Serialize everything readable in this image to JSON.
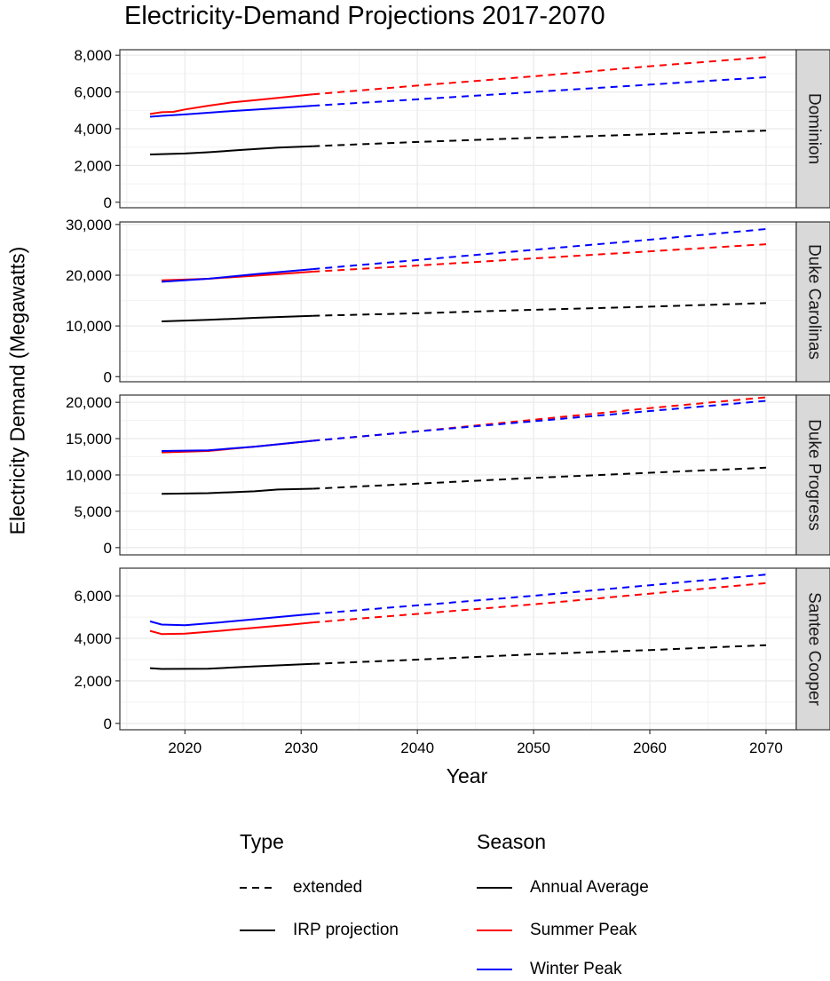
{
  "chart_data": {
    "type": "line",
    "title": "Electricity-Demand Projections 2017-2070",
    "xlabel": "Year",
    "ylabel": "Electricity Demand (Megawatts)",
    "xlim": [
      2014.4,
      2072.6
    ],
    "xticks": [
      2020,
      2030,
      2040,
      2050,
      2060,
      2070
    ],
    "grid": true,
    "colors": {
      "Annual Average": "#000000",
      "Summer Peak": "#ff0000",
      "Winter Peak": "#0000ff"
    },
    "legend": {
      "placement": "bottom",
      "type_title": "Type",
      "type_items": [
        {
          "label": "extended",
          "linestyle": "dashed"
        },
        {
          "label": "IRP projection",
          "linestyle": "solid"
        }
      ],
      "season_title": "Season",
      "season_items": [
        {
          "label": "Annual Average",
          "color": "#000000"
        },
        {
          "label": "Summer Peak",
          "color": "#ff0000"
        },
        {
          "label": "Winter Peak",
          "color": "#0000ff"
        }
      ]
    },
    "facets": [
      {
        "name": "Dominion",
        "ylim": [
          -300,
          8300
        ],
        "yticks": [
          0,
          2000,
          4000,
          6000,
          8000
        ],
        "ytick_labels": [
          "0",
          "2,000",
          "4,000",
          "6,000",
          "8,000"
        ],
        "series": [
          {
            "season": "Annual Average",
            "type": "IRP projection",
            "points": [
              [
                2017,
                2600
              ],
              [
                2020,
                2650
              ],
              [
                2022,
                2720
              ],
              [
                2025,
                2850
              ],
              [
                2028,
                2970
              ],
              [
                2031,
                3050
              ]
            ]
          },
          {
            "season": "Annual Average",
            "type": "extended",
            "points": [
              [
                2031,
                3050
              ],
              [
                2040,
                3280
              ],
              [
                2050,
                3500
              ],
              [
                2060,
                3700
              ],
              [
                2070,
                3900
              ]
            ]
          },
          {
            "season": "Summer Peak",
            "type": "IRP projection",
            "points": [
              [
                2017,
                4800
              ],
              [
                2018,
                4900
              ],
              [
                2019,
                4920
              ],
              [
                2020,
                5050
              ],
              [
                2022,
                5250
              ],
              [
                2024,
                5430
              ],
              [
                2026,
                5550
              ],
              [
                2028,
                5680
              ],
              [
                2031,
                5870
              ]
            ]
          },
          {
            "season": "Summer Peak",
            "type": "extended",
            "points": [
              [
                2031,
                5870
              ],
              [
                2040,
                6350
              ],
              [
                2050,
                6850
              ],
              [
                2060,
                7400
              ],
              [
                2070,
                7900
              ]
            ]
          },
          {
            "season": "Winter Peak",
            "type": "IRP projection",
            "points": [
              [
                2017,
                4650
              ],
              [
                2018,
                4700
              ],
              [
                2020,
                4780
              ],
              [
                2022,
                4870
              ],
              [
                2024,
                4960
              ],
              [
                2026,
                5040
              ],
              [
                2028,
                5120
              ],
              [
                2031,
                5250
              ]
            ]
          },
          {
            "season": "Winter Peak",
            "type": "extended",
            "points": [
              [
                2031,
                5250
              ],
              [
                2040,
                5600
              ],
              [
                2050,
                6000
              ],
              [
                2060,
                6400
              ],
              [
                2070,
                6800
              ]
            ]
          }
        ]
      },
      {
        "name": "Duke Carolinas",
        "ylim": [
          -1000,
          30500
        ],
        "yticks": [
          0,
          10000,
          20000,
          30000
        ],
        "ytick_labels": [
          "0",
          "10,000",
          "20,000",
          "30,000"
        ],
        "series": [
          {
            "season": "Annual Average",
            "type": "IRP projection",
            "points": [
              [
                2018,
                10900
              ],
              [
                2022,
                11200
              ],
              [
                2026,
                11600
              ],
              [
                2031,
                12000
              ]
            ]
          },
          {
            "season": "Annual Average",
            "type": "extended",
            "points": [
              [
                2031,
                12000
              ],
              [
                2040,
                12500
              ],
              [
                2050,
                13200
              ],
              [
                2060,
                13800
              ],
              [
                2070,
                14500
              ]
            ]
          },
          {
            "season": "Summer Peak",
            "type": "IRP projection",
            "points": [
              [
                2018,
                19000
              ],
              [
                2022,
                19300
              ],
              [
                2026,
                19900
              ],
              [
                2031,
                20700
              ]
            ]
          },
          {
            "season": "Summer Peak",
            "type": "extended",
            "points": [
              [
                2031,
                20700
              ],
              [
                2040,
                21900
              ],
              [
                2050,
                23300
              ],
              [
                2060,
                24700
              ],
              [
                2070,
                26100
              ]
            ]
          },
          {
            "season": "Winter Peak",
            "type": "IRP projection",
            "points": [
              [
                2018,
                18700
              ],
              [
                2022,
                19300
              ],
              [
                2026,
                20200
              ],
              [
                2031,
                21200
              ]
            ]
          },
          {
            "season": "Winter Peak",
            "type": "extended",
            "points": [
              [
                2031,
                21200
              ],
              [
                2040,
                23000
              ],
              [
                2050,
                25000
              ],
              [
                2060,
                27000
              ],
              [
                2070,
                29100
              ]
            ]
          }
        ]
      },
      {
        "name": "Duke Progress",
        "ylim": [
          -1000,
          21000
        ],
        "yticks": [
          0,
          5000,
          10000,
          15000,
          20000
        ],
        "ytick_labels": [
          "0",
          "5,000",
          "10,000",
          "15,000",
          "20,000"
        ],
        "series": [
          {
            "season": "Annual Average",
            "type": "IRP projection",
            "points": [
              [
                2018,
                7400
              ],
              [
                2022,
                7500
              ],
              [
                2026,
                7750
              ],
              [
                2028,
                8000
              ],
              [
                2031,
                8100
              ]
            ]
          },
          {
            "season": "Annual Average",
            "type": "extended",
            "points": [
              [
                2031,
                8100
              ],
              [
                2040,
                8800
              ],
              [
                2050,
                9600
              ],
              [
                2060,
                10300
              ],
              [
                2070,
                11000
              ]
            ]
          },
          {
            "season": "Summer Peak",
            "type": "IRP projection",
            "points": [
              [
                2018,
                13100
              ],
              [
                2022,
                13300
              ],
              [
                2026,
                13900
              ],
              [
                2031,
                14700
              ]
            ]
          },
          {
            "season": "Summer Peak",
            "type": "extended",
            "points": [
              [
                2031,
                14700
              ],
              [
                2040,
                16000
              ],
              [
                2050,
                17600
              ],
              [
                2060,
                19200
              ],
              [
                2070,
                20700
              ]
            ]
          },
          {
            "season": "Winter Peak",
            "type": "IRP projection",
            "points": [
              [
                2018,
                13300
              ],
              [
                2022,
                13400
              ],
              [
                2026,
                13900
              ],
              [
                2031,
                14700
              ]
            ]
          },
          {
            "season": "Winter Peak",
            "type": "extended",
            "points": [
              [
                2031,
                14700
              ],
              [
                2040,
                16000
              ],
              [
                2050,
                17400
              ],
              [
                2060,
                18800
              ],
              [
                2070,
                20200
              ]
            ]
          }
        ]
      },
      {
        "name": "Santee Cooper",
        "ylim": [
          -300,
          7300
        ],
        "yticks": [
          0,
          2000,
          4000,
          6000
        ],
        "ytick_labels": [
          "0",
          "2,000",
          "4,000",
          "6,000"
        ],
        "series": [
          {
            "season": "Annual Average",
            "type": "IRP projection",
            "points": [
              [
                2017,
                2600
              ],
              [
                2018,
                2560
              ],
              [
                2022,
                2570
              ],
              [
                2026,
                2680
              ],
              [
                2031,
                2800
              ]
            ]
          },
          {
            "season": "Annual Average",
            "type": "extended",
            "points": [
              [
                2031,
                2800
              ],
              [
                2040,
                3000
              ],
              [
                2050,
                3250
              ],
              [
                2060,
                3450
              ],
              [
                2070,
                3680
              ]
            ]
          },
          {
            "season": "Summer Peak",
            "type": "IRP projection",
            "points": [
              [
                2017,
                4350
              ],
              [
                2018,
                4200
              ],
              [
                2020,
                4220
              ],
              [
                2023,
                4350
              ],
              [
                2026,
                4500
              ],
              [
                2029,
                4640
              ],
              [
                2031,
                4750
              ]
            ]
          },
          {
            "season": "Summer Peak",
            "type": "extended",
            "points": [
              [
                2031,
                4750
              ],
              [
                2040,
                5150
              ],
              [
                2050,
                5600
              ],
              [
                2060,
                6100
              ],
              [
                2070,
                6600
              ]
            ]
          },
          {
            "season": "Winter Peak",
            "type": "IRP projection",
            "points": [
              [
                2017,
                4800
              ],
              [
                2018,
                4650
              ],
              [
                2020,
                4620
              ],
              [
                2023,
                4750
              ],
              [
                2026,
                4900
              ],
              [
                2029,
                5050
              ],
              [
                2031,
                5150
              ]
            ]
          },
          {
            "season": "Winter Peak",
            "type": "extended",
            "points": [
              [
                2031,
                5150
              ],
              [
                2040,
                5550
              ],
              [
                2050,
                6000
              ],
              [
                2060,
                6500
              ],
              [
                2070,
                7000
              ]
            ]
          }
        ]
      }
    ]
  }
}
